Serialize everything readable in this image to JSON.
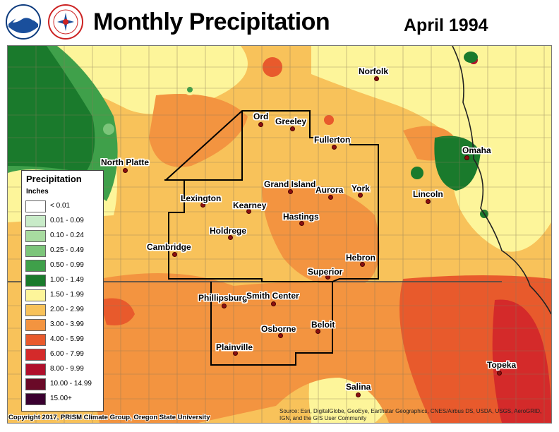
{
  "header": {
    "title": "Monthly Precipitation",
    "period": "April 1994",
    "logos": [
      "noaa-logo",
      "national-weather-service-logo"
    ]
  },
  "legend": {
    "title": "Precipitation",
    "unit": "Inches",
    "classes": [
      {
        "label": "< 0.01",
        "color": "#ffffff"
      },
      {
        "label": "0.01 - 0.09",
        "color": "#c8ebc8"
      },
      {
        "label": "0.10 - 0.24",
        "color": "#a8dba0"
      },
      {
        "label": "0.25 - 0.49",
        "color": "#7cc57a"
      },
      {
        "label": "0.50 - 0.99",
        "color": "#3fa04a"
      },
      {
        "label": "1.00 - 1.49",
        "color": "#1a7a2c"
      },
      {
        "label": "1.50 - 1.99",
        "color": "#fdf59a"
      },
      {
        "label": "2.00 - 2.99",
        "color": "#f8c25a"
      },
      {
        "label": "3.00 - 3.99",
        "color": "#f39440"
      },
      {
        "label": "4.00 - 5.99",
        "color": "#e85a2c"
      },
      {
        "label": "6.00 - 7.99",
        "color": "#d42a2a"
      },
      {
        "label": "8.00 - 9.99",
        "color": "#b0102c"
      },
      {
        "label": "10.00 - 14.99",
        "color": "#6a0a28"
      },
      {
        "label": "15.00+",
        "color": "#3a0030"
      }
    ]
  },
  "cities": [
    {
      "name": "Norfolk"
    },
    {
      "name": "Ord"
    },
    {
      "name": "Greeley"
    },
    {
      "name": "Fullerton"
    },
    {
      "name": "North Platte"
    },
    {
      "name": "Omaha"
    },
    {
      "name": "Grand Island"
    },
    {
      "name": "Aurora"
    },
    {
      "name": "York"
    },
    {
      "name": "Lexington"
    },
    {
      "name": "Kearney"
    },
    {
      "name": "Lincoln"
    },
    {
      "name": "Hastings"
    },
    {
      "name": "Holdrege"
    },
    {
      "name": "Cambridge"
    },
    {
      "name": "Hebron"
    },
    {
      "name": "Superior"
    },
    {
      "name": "Phillipsburg"
    },
    {
      "name": "Smith Center"
    },
    {
      "name": "Beloit"
    },
    {
      "name": "Osborne"
    },
    {
      "name": "Plainville"
    },
    {
      "name": "Topeka"
    },
    {
      "name": "Salina"
    }
  ],
  "credits": {
    "copyright": "Copyright 2017, PRISM Climate Group, Oregon State University",
    "source": "Source: Esri, DigitalGlobe, GeoEye, Earthstar Geographics, CNES/Airbus DS, USDA, USGS, AeroGRID, IGN, and the GIS User Community"
  }
}
